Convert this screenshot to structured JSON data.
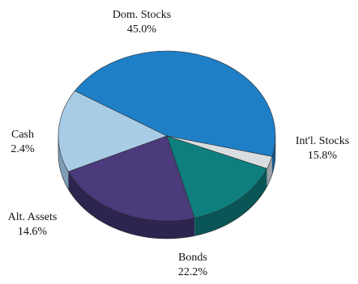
{
  "chart_data": {
    "type": "pie",
    "style": "3d",
    "slices": [
      {
        "name": "Dom. Stocks",
        "value": 45.0,
        "label": "45.0%",
        "color": "#1e7fc7",
        "side_color": "#135a8f"
      },
      {
        "name": "Int'l. Stocks",
        "value": 15.8,
        "label": "15.8%",
        "color": "#a9cce6",
        "side_color": "#7d9db5"
      },
      {
        "name": "Bonds",
        "value": 22.2,
        "label": "22.2%",
        "color": "#4b3b7c",
        "side_color": "#2e2450"
      },
      {
        "name": "Alt. Assets",
        "value": 14.6,
        "label": "14.6%",
        "color": "#0f7e7e",
        "side_color": "#0a5656"
      },
      {
        "name": "Cash",
        "value": 2.4,
        "label": "2.4%",
        "color": "#d8dde2",
        "side_color": "#9aa1a8"
      }
    ]
  }
}
